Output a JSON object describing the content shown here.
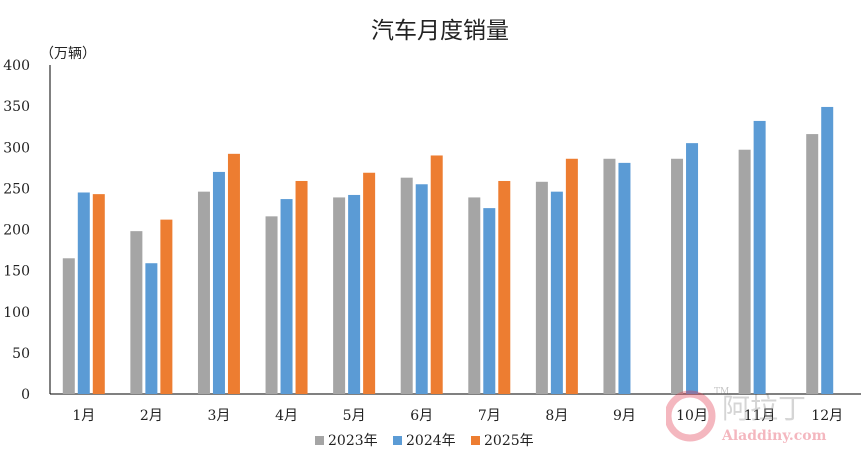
{
  "chart_data": {
    "type": "bar",
    "title": "汽车月度销量",
    "unit_label": "（万辆）",
    "categories": [
      "1月",
      "2月",
      "3月",
      "4月",
      "5月",
      "6月",
      "7月",
      "8月",
      "9月",
      "10月",
      "11月",
      "12月"
    ],
    "series": [
      {
        "name": "2023年",
        "color": "#a5a5a5",
        "values": [
          165,
          198,
          246,
          216,
          239,
          263,
          239,
          258,
          286,
          286,
          297,
          316
        ]
      },
      {
        "name": "2024年",
        "color": "#5b9bd5",
        "values": [
          245,
          159,
          270,
          237,
          242,
          255,
          226,
          246,
          281,
          305,
          332,
          349
        ]
      },
      {
        "name": "2025年",
        "color": "#ed7d31",
        "values": [
          243,
          212,
          292,
          259,
          269,
          290,
          259,
          286,
          null,
          null,
          null,
          null
        ]
      }
    ],
    "ylim": [
      0,
      400
    ],
    "yticks": [
      0,
      50,
      100,
      150,
      200,
      250,
      300,
      350,
      400
    ],
    "grid": false,
    "legend_position": "bottom"
  },
  "watermark": {
    "text_cn": "阿拉丁",
    "text_en": "Aladdiny.com",
    "tm": "TM",
    "accent_color": "#e0344a"
  }
}
